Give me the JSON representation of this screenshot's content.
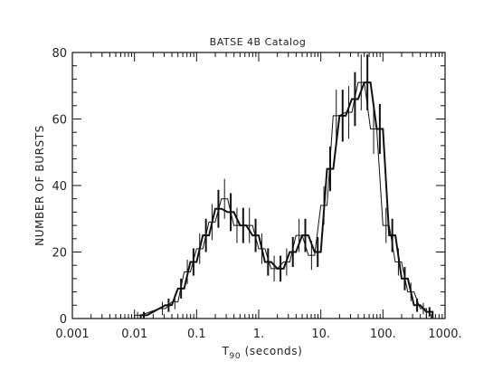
{
  "chart_data": {
    "type": "histogram",
    "title": "BATSE 4B Catalog",
    "xlabel_main": "T",
    "xlabel_sub": "90",
    "xlabel_rest": " (seconds)",
    "ylabel": "NUMBER OF BURSTS",
    "x_scale": "log",
    "xlim": [
      0.001,
      1000
    ],
    "ylim": [
      0,
      80
    ],
    "x_ticks": [
      {
        "value": 0.001,
        "label": "0.001"
      },
      {
        "value": 0.01,
        "label": "0.01"
      },
      {
        "value": 0.1,
        "label": "0.1"
      },
      {
        "value": 1,
        "label": "1."
      },
      {
        "value": 10,
        "label": "10."
      },
      {
        "value": 100,
        "label": "100."
      },
      {
        "value": 1000,
        "label": "1000."
      }
    ],
    "y_ticks": [
      {
        "value": 0,
        "label": "0"
      },
      {
        "value": 20,
        "label": "20"
      },
      {
        "value": 40,
        "label": "40"
      },
      {
        "value": 60,
        "label": "60"
      },
      {
        "value": 80,
        "label": "80"
      }
    ],
    "bin_width_dex": 0.1,
    "series": [
      {
        "style": "thin",
        "bins": [
          {
            "x_start": 0.01,
            "value": 1,
            "error": 1
          },
          {
            "x_start": 0.0251,
            "value": 3,
            "error": 2
          },
          {
            "x_start": 0.0398,
            "value": 5,
            "error": 2.2
          },
          {
            "x_start": 0.0631,
            "value": 14,
            "error": 3.7
          },
          {
            "x_start": 0.1,
            "value": 21,
            "error": 4.6
          },
          {
            "x_start": 0.158,
            "value": 29,
            "error": 5.4
          },
          {
            "x_start": 0.251,
            "value": 36,
            "error": 6
          },
          {
            "x_start": 0.398,
            "value": 28,
            "error": 5.3
          },
          {
            "x_start": 0.631,
            "value": 28,
            "error": 5.3
          },
          {
            "x_start": 1,
            "value": 21,
            "error": 4.6
          },
          {
            "x_start": 1.58,
            "value": 15,
            "error": 3.9
          },
          {
            "x_start": 2.51,
            "value": 17,
            "error": 4.1
          },
          {
            "x_start": 3.98,
            "value": 25,
            "error": 5
          },
          {
            "x_start": 6.31,
            "value": 19,
            "error": 4.4
          },
          {
            "x_start": 10,
            "value": 34,
            "error": 5.8
          },
          {
            "x_start": 15.8,
            "value": 61,
            "error": 7.8
          },
          {
            "x_start": 25.1,
            "value": 62,
            "error": 7.9
          },
          {
            "x_start": 39.8,
            "value": 71,
            "error": 8.4
          },
          {
            "x_start": 63.1,
            "value": 57,
            "error": 7.5
          },
          {
            "x_start": 100,
            "value": 28,
            "error": 5.3
          },
          {
            "x_start": 158,
            "value": 17,
            "error": 4.1
          },
          {
            "x_start": 251,
            "value": 8,
            "error": 2.8
          },
          {
            "x_start": 398,
            "value": 3,
            "error": 1.7
          }
        ]
      },
      {
        "style": "thick",
        "bins": [
          {
            "x_start": 0.0126,
            "value": 1,
            "error": 1
          },
          {
            "x_start": 0.0316,
            "value": 4,
            "error": 2
          },
          {
            "x_start": 0.0501,
            "value": 9,
            "error": 3
          },
          {
            "x_start": 0.0794,
            "value": 17,
            "error": 4.1
          },
          {
            "x_start": 0.126,
            "value": 25,
            "error": 5
          },
          {
            "x_start": 0.2,
            "value": 33,
            "error": 5.7
          },
          {
            "x_start": 0.316,
            "value": 32,
            "error": 5.7
          },
          {
            "x_start": 0.501,
            "value": 28,
            "error": 5.3
          },
          {
            "x_start": 0.794,
            "value": 25,
            "error": 5
          },
          {
            "x_start": 1.26,
            "value": 17,
            "error": 4.1
          },
          {
            "x_start": 2,
            "value": 15,
            "error": 3.9
          },
          {
            "x_start": 3.16,
            "value": 20,
            "error": 4.5
          },
          {
            "x_start": 5.01,
            "value": 25,
            "error": 5
          },
          {
            "x_start": 7.94,
            "value": 20,
            "error": 4.5
          },
          {
            "x_start": 12.6,
            "value": 45,
            "error": 6.7
          },
          {
            "x_start": 20,
            "value": 61,
            "error": 7.8
          },
          {
            "x_start": 31.6,
            "value": 66,
            "error": 8.1
          },
          {
            "x_start": 50.1,
            "value": 71,
            "error": 8.4
          },
          {
            "x_start": 79.4,
            "value": 57,
            "error": 7.5
          },
          {
            "x_start": 126,
            "value": 25,
            "error": 5
          },
          {
            "x_start": 200,
            "value": 12,
            "error": 3.5
          },
          {
            "x_start": 316,
            "value": 4,
            "error": 2
          },
          {
            "x_start": 501,
            "value": 2,
            "error": 1.4
          }
        ]
      }
    ]
  }
}
